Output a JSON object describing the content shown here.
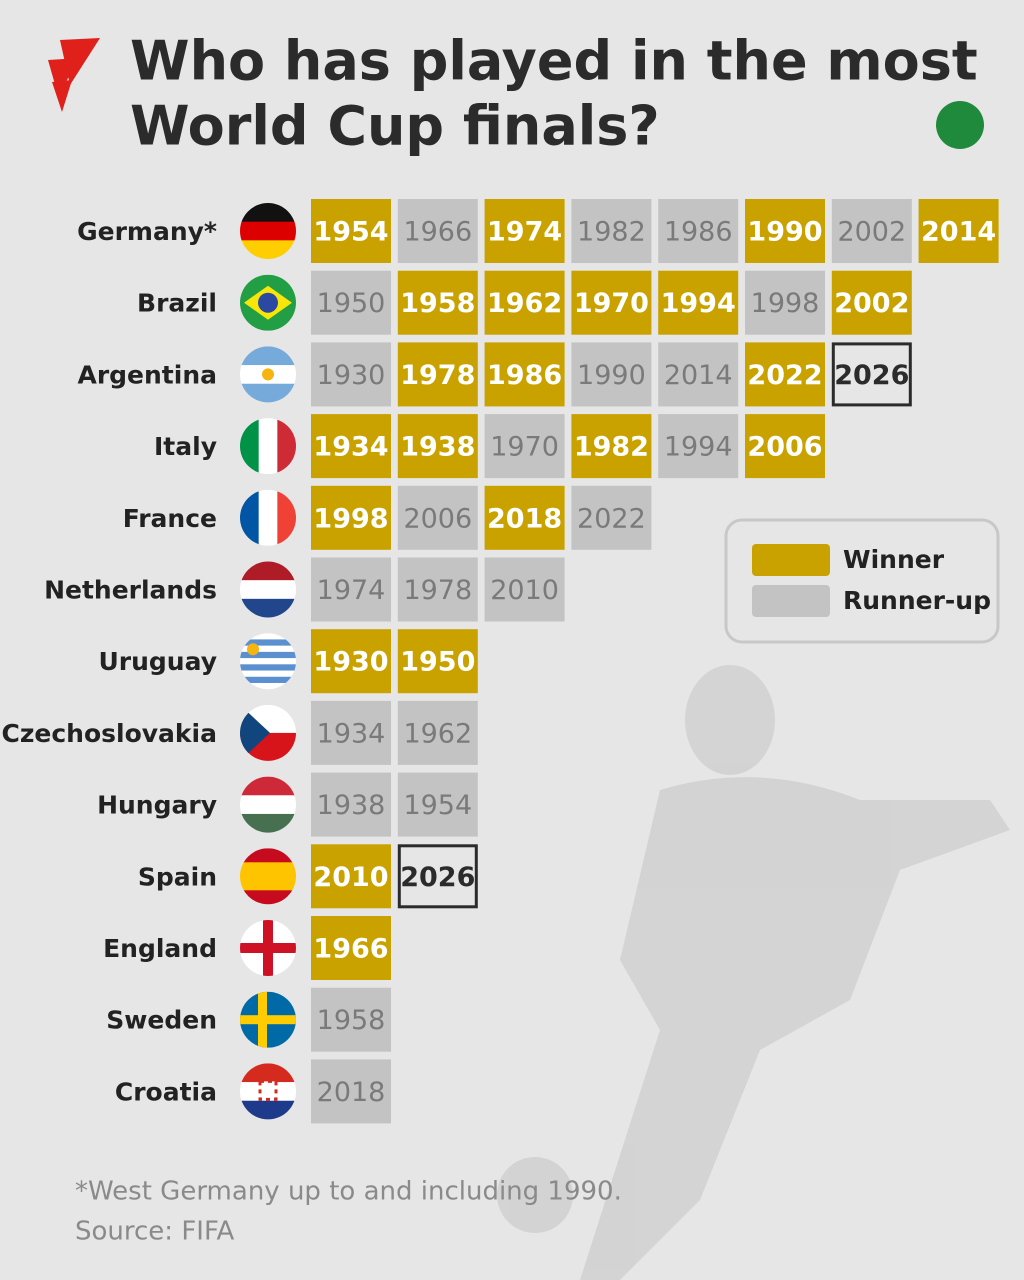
{
  "title": [
    "Who has played in the most",
    "World Cup finals?"
  ],
  "legend": [
    {
      "label": "Winner",
      "color": "#c9a200"
    },
    {
      "label": "Runner-up",
      "color": "#c3c3c3"
    }
  ],
  "rows": [
    {
      "country": "Germany*",
      "finals": [
        {
          "year": 1954,
          "key": 0
        },
        {
          "year": 1966,
          "key": 1
        },
        {
          "year": 1974,
          "key": 0
        },
        {
          "year": 1982,
          "key": 1
        },
        {
          "year": 1986,
          "key": 1
        },
        {
          "year": 1990,
          "key": 0
        },
        {
          "year": 2002,
          "key": 1
        },
        {
          "year": 2014,
          "key": 0
        }
      ]
    },
    {
      "country": "Brazil",
      "finals": [
        {
          "year": 1950,
          "key": 1
        },
        {
          "year": 1958,
          "key": 0
        },
        {
          "year": 1962,
          "key": 0
        },
        {
          "year": 1970,
          "key": 0
        },
        {
          "year": 1994,
          "key": 0
        },
        {
          "year": 1998,
          "key": 1
        },
        {
          "year": 2002,
          "key": 0
        }
      ]
    },
    {
      "country": "Argentina",
      "finals": [
        {
          "year": 1930,
          "key": 1
        },
        {
          "year": 1978,
          "key": 0
        },
        {
          "year": 1986,
          "key": 0
        },
        {
          "year": 1990,
          "key": 1
        },
        {
          "year": 2014,
          "key": 1
        },
        {
          "year": 2022,
          "key": 0
        },
        {
          "year": 2026,
          "key": null
        }
      ]
    },
    {
      "country": "Italy",
      "finals": [
        {
          "year": 1934,
          "key": 0
        },
        {
          "year": 1938,
          "key": 0
        },
        {
          "year": 1970,
          "key": 1
        },
        {
          "year": 1982,
          "key": 0
        },
        {
          "year": 1994,
          "key": 1
        },
        {
          "year": 2006,
          "key": 0
        }
      ]
    },
    {
      "country": "France",
      "finals": [
        {
          "year": 1998,
          "key": 0
        },
        {
          "year": 2006,
          "key": 1
        },
        {
          "year": 2018,
          "key": 0
        },
        {
          "year": 2022,
          "key": 1
        }
      ]
    },
    {
      "country": "Netherlands",
      "finals": [
        {
          "year": 1974,
          "key": 1
        },
        {
          "year": 1978,
          "key": 1
        },
        {
          "year": 2010,
          "key": 1
        }
      ]
    },
    {
      "country": "Uruguay",
      "finals": [
        {
          "year": 1930,
          "key": 0
        },
        {
          "year": 1950,
          "key": 0
        }
      ]
    },
    {
      "country": "Czechoslovakia",
      "finals": [
        {
          "year": 1934,
          "key": 1
        },
        {
          "year": 1962,
          "key": 1
        }
      ]
    },
    {
      "country": "Hungary",
      "finals": [
        {
          "year": 1938,
          "key": 1
        },
        {
          "year": 1954,
          "key": 1
        }
      ]
    },
    {
      "country": "Spain",
      "finals": [
        {
          "year": 2010,
          "key": 0
        },
        {
          "year": 2026,
          "key": null
        }
      ]
    },
    {
      "country": "England",
      "finals": [
        {
          "year": 1966,
          "key": 0
        }
      ]
    },
    {
      "country": "Sweden",
      "finals": [
        {
          "year": 1958,
          "key": 1
        }
      ]
    },
    {
      "country": "Croatia",
      "finals": [
        {
          "year": 2018,
          "key": 1
        }
      ]
    }
  ],
  "footnote": "*West Germany up to and including 1990.",
  "source": "Source: FIFA"
}
